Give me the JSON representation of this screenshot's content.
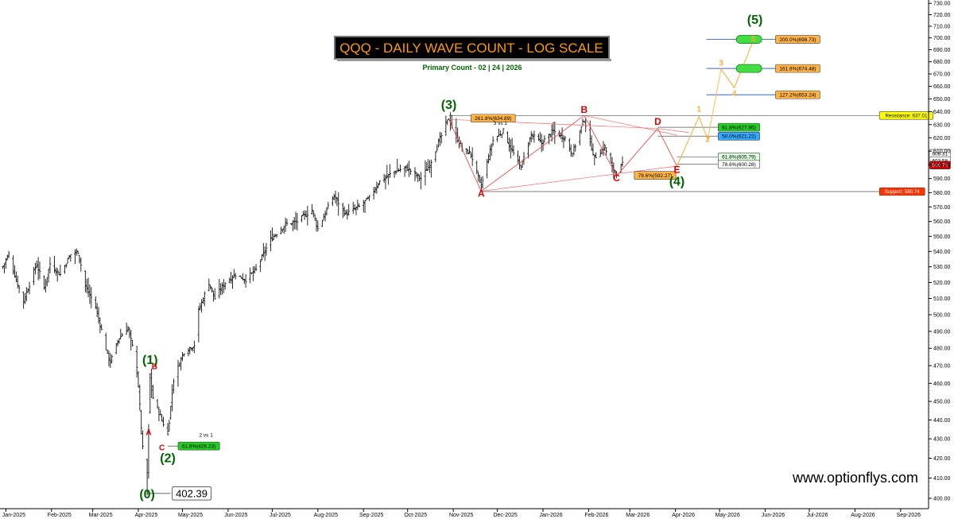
{
  "chart_data": {
    "type": "ohlc",
    "title": "QQQ - DAILY WAVE COUNT - LOG SCALE",
    "subtitle": "Primary Count  - 02 | 24 | 2026",
    "watermark": "www.optionflys.com",
    "y_scale": "log",
    "ylim": [
      395,
      733
    ],
    "yticks": [
      400,
      410,
      420,
      430,
      440,
      450,
      460,
      470,
      480,
      490,
      500,
      510,
      520,
      530,
      540,
      550,
      560,
      570,
      580,
      590,
      600,
      610,
      620,
      630,
      640,
      650,
      660,
      670,
      680,
      690,
      700,
      710,
      720,
      730
    ],
    "xlim": [
      "2024-12-28",
      "2026-09-20"
    ],
    "x_tick_labels": [
      {
        "date": "2025-01-01",
        "label": "Jan-2025"
      },
      {
        "date": "2025-02-01",
        "label": "Feb-2025"
      },
      {
        "date": "2025-03-01",
        "label": "Mar-2025"
      },
      {
        "date": "2025-04-01",
        "label": "Apr-2025"
      },
      {
        "date": "2025-05-01",
        "label": "May-2025"
      },
      {
        "date": "2025-06-01",
        "label": "Jun-2025"
      },
      {
        "date": "2025-07-01",
        "label": "Jul-2025"
      },
      {
        "date": "2025-08-01",
        "label": "Aug-2025"
      },
      {
        "date": "2025-09-01",
        "label": "Sep-2025"
      },
      {
        "date": "2025-10-01",
        "label": "Oct-2025"
      },
      {
        "date": "2025-11-01",
        "label": "Nov-2025"
      },
      {
        "date": "2025-12-01",
        "label": "Dec-2025"
      },
      {
        "date": "2026-01-01",
        "label": "Jan-2026"
      },
      {
        "date": "2026-02-01",
        "label": "Feb-2026"
      },
      {
        "date": "2026-03-01",
        "label": "Mar-2026"
      },
      {
        "date": "2026-04-01",
        "label": "Apr-2026"
      },
      {
        "date": "2026-05-01",
        "label": "May-2026"
      },
      {
        "date": "2026-06-01",
        "label": "Jun-2026"
      },
      {
        "date": "2026-07-01",
        "label": "Jul-2026"
      },
      {
        "date": "2026-08-01",
        "label": "Aug-2026"
      },
      {
        "date": "2026-09-01",
        "label": "Sep-2026"
      }
    ],
    "price_path": [
      [
        "2024-12-30",
        530
      ],
      [
        "2025-01-03",
        538
      ],
      [
        "2025-01-08",
        522
      ],
      [
        "2025-01-13",
        508
      ],
      [
        "2025-01-22",
        532
      ],
      [
        "2025-01-27",
        516
      ],
      [
        "2025-01-31",
        532
      ],
      [
        "2025-02-07",
        525
      ],
      [
        "2025-02-14",
        538
      ],
      [
        "2025-02-19",
        540
      ],
      [
        "2025-02-24",
        518
      ],
      [
        "2025-03-03",
        505
      ],
      [
        "2025-03-10",
        480
      ],
      [
        "2025-03-13",
        472
      ],
      [
        "2025-03-19",
        486
      ],
      [
        "2025-03-25",
        492
      ],
      [
        "2025-03-31",
        470
      ],
      [
        "2025-04-04",
        425
      ],
      [
        "2025-04-07",
        403
      ],
      [
        "2025-04-09",
        465
      ],
      [
        "2025-04-11",
        452
      ],
      [
        "2025-04-16",
        442
      ],
      [
        "2025-04-21",
        432
      ],
      [
        "2025-04-25",
        462
      ],
      [
        "2025-05-02",
        478
      ],
      [
        "2025-05-09",
        482
      ],
      [
        "2025-05-12",
        502
      ],
      [
        "2025-05-19",
        520
      ],
      [
        "2025-05-23",
        510
      ],
      [
        "2025-05-30",
        520
      ],
      [
        "2025-06-06",
        525
      ],
      [
        "2025-06-13",
        522
      ],
      [
        "2025-06-20",
        528
      ],
      [
        "2025-06-30",
        548
      ],
      [
        "2025-07-10",
        558
      ],
      [
        "2025-07-18",
        560
      ],
      [
        "2025-07-28",
        568
      ],
      [
        "2025-08-01",
        555
      ],
      [
        "2025-08-12",
        578
      ],
      [
        "2025-08-20",
        565
      ],
      [
        "2025-08-29",
        570
      ],
      [
        "2025-09-05",
        576
      ],
      [
        "2025-09-12",
        588
      ],
      [
        "2025-09-22",
        595
      ],
      [
        "2025-09-30",
        598
      ],
      [
        "2025-10-10",
        590
      ],
      [
        "2025-10-16",
        600
      ],
      [
        "2025-10-29",
        635
      ],
      [
        "2025-11-07",
        612
      ],
      [
        "2025-11-13",
        608
      ],
      [
        "2025-11-20",
        584
      ],
      [
        "2025-11-28",
        618
      ],
      [
        "2025-12-05",
        625
      ],
      [
        "2025-12-12",
        608
      ],
      [
        "2025-12-17",
        598
      ],
      [
        "2025-12-24",
        622
      ],
      [
        "2025-12-31",
        616
      ],
      [
        "2026-01-08",
        625
      ],
      [
        "2026-01-16",
        620
      ],
      [
        "2026-01-21",
        608
      ],
      [
        "2026-01-29",
        634
      ],
      [
        "2026-02-05",
        605
      ],
      [
        "2026-02-12",
        613
      ],
      [
        "2026-02-17",
        598
      ],
      [
        "2026-02-20",
        594
      ],
      [
        "2026-02-24",
        600
      ]
    ],
    "levels": [
      {
        "label": "Resistance: 637.01",
        "value": 637.01,
        "color": "#ffff00"
      },
      {
        "label": "Support: 580.74",
        "value": 580.74,
        "color": "#ff3300"
      }
    ],
    "price_tags": [
      {
        "label": "608.31",
        "value": 608.31,
        "color": "#ffffff"
      },
      {
        "label": "603.58",
        "value": 603.58,
        "color": "#ffffff"
      },
      {
        "label": "599.73",
        "value": 599.73,
        "color": "#cc0000"
      }
    ],
    "fib_labels": [
      {
        "label": "261.8%(634.89)",
        "value": 634.89,
        "date": "2025-11-13",
        "color": "#ffb347"
      },
      {
        "label": "61.8%(627.95)",
        "value": 627.95,
        "date": "2026-04-30",
        "color": "#22cc22"
      },
      {
        "label": "50.0%(621.22)",
        "value": 621.22,
        "date": "2026-04-30",
        "color": "#33aaff"
      },
      {
        "label": "61.8%(605.79)",
        "value": 605.79,
        "date": "2026-04-30",
        "color": "#ddffdd"
      },
      {
        "label": "78.6%(600.28)",
        "value": 600.28,
        "date": "2026-04-30",
        "color": "#ffffff"
      },
      {
        "label": "78.6%(592.27)",
        "value": 592.27,
        "date": "2026-03-04",
        "color": "#ffb347"
      },
      {
        "label": "200.0%(698.73)",
        "value": 698.73,
        "date": "2026-06-08",
        "color": "#ffb347"
      },
      {
        "label": "161.8%(674.48)",
        "value": 674.48,
        "date": "2026-06-08",
        "color": "#ffb347"
      },
      {
        "label": "127.2%(653.24)",
        "value": 653.24,
        "date": "2026-06-08",
        "color": "#ffb347"
      },
      {
        "label": "61.8%(426.23)",
        "value": 426.23,
        "date": "2025-04-28",
        "color": "#22cc22"
      }
    ],
    "wave_labels": [
      {
        "label": "(0)",
        "date": "2025-04-07",
        "value": 400,
        "color": "#006600",
        "size": 16
      },
      {
        "label": "(1)",
        "date": "2025-04-09",
        "value": 471,
        "color": "#006600",
        "size": 16
      },
      {
        "label": "(2)",
        "date": "2025-04-21",
        "value": 418,
        "color": "#006600",
        "size": 16
      },
      {
        "label": "(3)",
        "date": "2025-10-29",
        "value": 642,
        "color": "#006600",
        "size": 16
      },
      {
        "label": "(4)",
        "date": "2026-04-02",
        "value": 585,
        "color": "#006600",
        "size": 16
      },
      {
        "label": "(5)",
        "date": "2026-05-25",
        "value": 712,
        "color": "#006600",
        "size": 16
      },
      {
        "label": "A",
        "date": "2025-11-20",
        "value": 577,
        "color": "#dd0000",
        "size": 12
      },
      {
        "label": "B",
        "date": "2026-01-29",
        "value": 639,
        "color": "#dd0000",
        "size": 12
      },
      {
        "label": "C",
        "date": "2026-02-20",
        "value": 588,
        "color": "#dd0000",
        "size": 12
      },
      {
        "label": "D",
        "date": "2026-03-20",
        "value": 630,
        "color": "#dd0000",
        "size": 12
      },
      {
        "label": "E",
        "date": "2026-04-02",
        "value": 594,
        "color": "#dd0000",
        "size": 12
      },
      {
        "label": "A",
        "date": "2025-04-08",
        "value": 432,
        "color": "#dd0000",
        "size": 10
      },
      {
        "label": "B",
        "date": "2025-04-12",
        "value": 468,
        "color": "#dd0000",
        "size": 10
      },
      {
        "label": "C",
        "date": "2025-04-17",
        "value": 424,
        "color": "#dd0000",
        "size": 10
      },
      {
        "label": "1",
        "date": "2026-04-17",
        "value": 640,
        "color": "#ffaa33",
        "size": 10
      },
      {
        "label": "2",
        "date": "2026-04-23",
        "value": 617,
        "color": "#ffaa33",
        "size": 10
      },
      {
        "label": "3",
        "date": "2026-05-02",
        "value": 677,
        "color": "#ffaa33",
        "size": 10
      },
      {
        "label": "4",
        "date": "2026-05-11",
        "value": 652,
        "color": "#ffaa33",
        "size": 10
      },
      {
        "label": "5",
        "date": "2026-05-24",
        "value": 697,
        "color": "#ffaa33",
        "size": 10
      }
    ],
    "notes": [
      {
        "label": "3 vs 1",
        "date": "2025-12-03",
        "value": 630
      },
      {
        "label": "2 vs 1",
        "date": "2025-05-17",
        "value": 431
      }
    ],
    "low_annotation": {
      "label": "402.39",
      "value": 402.39,
      "date": "2025-04-07"
    },
    "triangle": [
      {
        "date": "2025-10-29",
        "value": 634
      },
      {
        "date": "2025-11-20",
        "value": 581
      },
      {
        "date": "2026-01-29",
        "value": 637
      },
      {
        "date": "2026-02-20",
        "value": 592
      },
      {
        "date": "2026-03-20",
        "value": 627
      },
      {
        "date": "2026-04-02",
        "value": 599
      }
    ],
    "projection": [
      {
        "date": "2026-04-02",
        "value": 599
      },
      {
        "date": "2026-04-17",
        "value": 636
      },
      {
        "date": "2026-04-23",
        "value": 619
      },
      {
        "date": "2026-05-02",
        "value": 674
      },
      {
        "date": "2026-05-11",
        "value": 659
      },
      {
        "date": "2026-05-24",
        "value": 698
      }
    ],
    "targets": [
      {
        "value": 698.73,
        "color": "#3366cc"
      },
      {
        "value": 674.48,
        "color": "#3366cc"
      },
      {
        "value": 653.24,
        "color": "#3366cc"
      }
    ],
    "target_zones": [
      {
        "date": "2026-05-21",
        "value": 698.73
      },
      {
        "date": "2026-05-21",
        "value": 674.48
      }
    ]
  }
}
